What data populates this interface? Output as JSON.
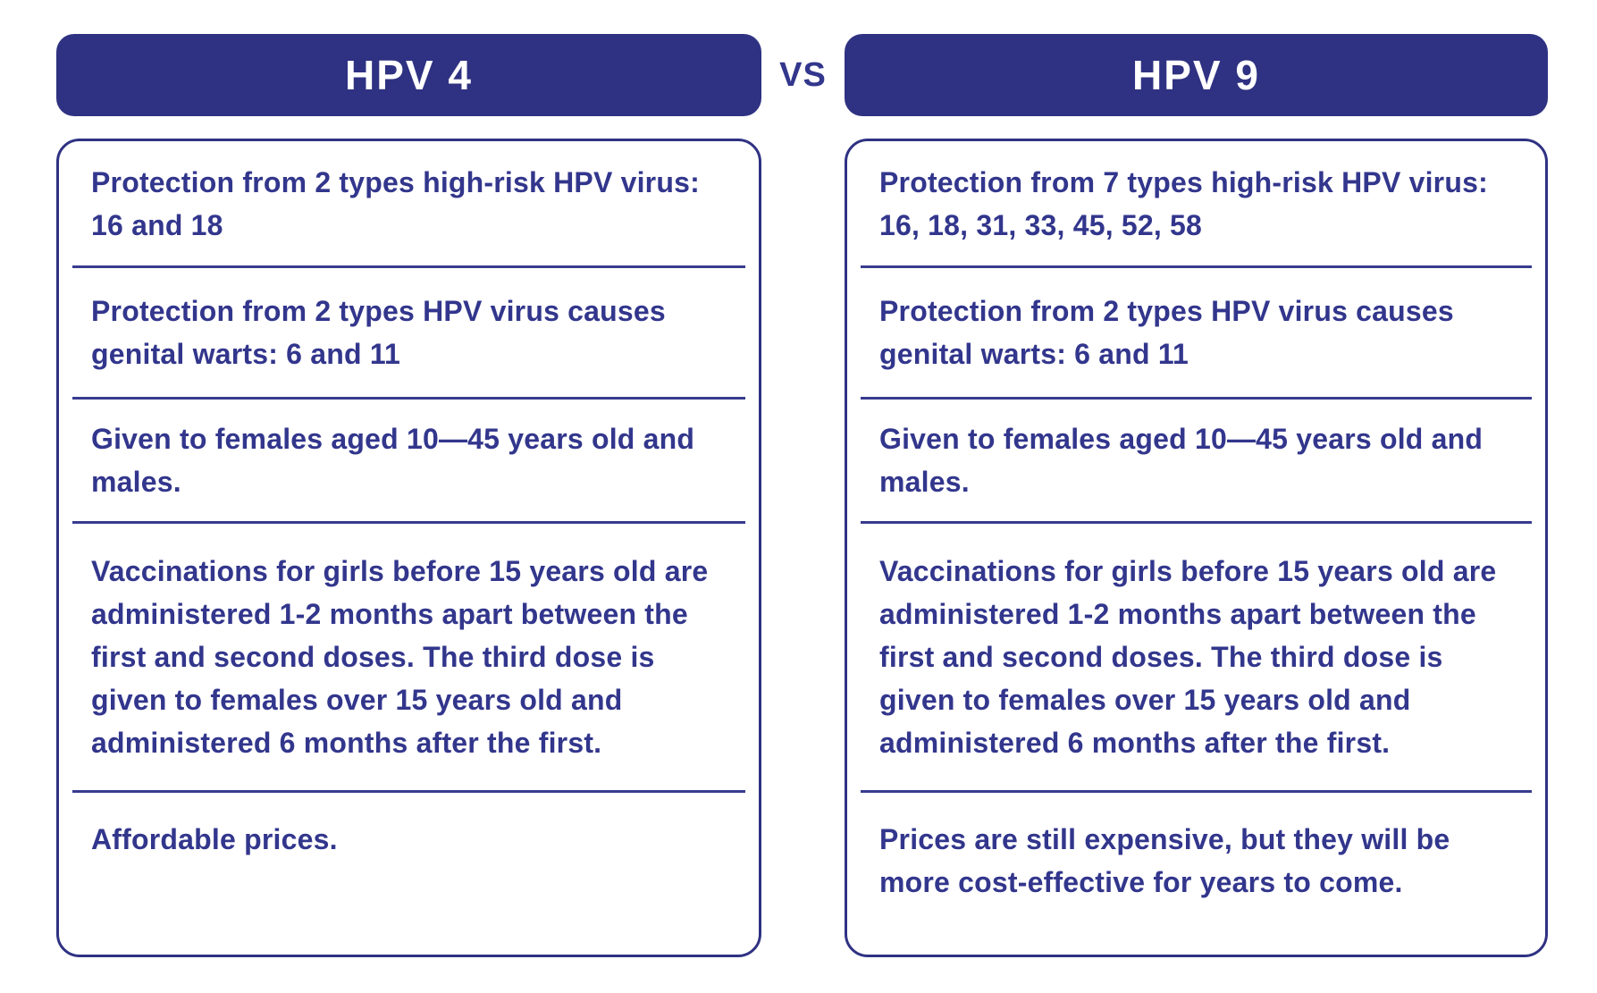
{
  "colors": {
    "primary": "#2f3282",
    "separator": "#383b8e",
    "text": "#32368c",
    "header_text": "#ffffff",
    "background": "#ffffff"
  },
  "vs_label": "VS",
  "columns": [
    {
      "title": "HPV 4",
      "rows": [
        "Protection from 2 types high-risk HPV virus: 16 and 18",
        "Protection from 2 types HPV virus causes genital warts: 6 and 11",
        "Given to females aged 10—45 years old and males.",
        "Vaccinations for girls before 15 years old are administered 1-2 months apart between the first and second doses. The third dose is given to females over 15 years old and administered 6 months after the first.",
        "Affordable prices."
      ]
    },
    {
      "title": "HPV 9",
      "rows": [
        "Protection from 7 types high-risk HPV virus: 16, 18, 31, 33, 45, 52, 58",
        "Protection from 2 types HPV virus causes genital warts: 6 and 11",
        "Given to females aged 10—45 years old and males.",
        "Vaccinations for girls before 15 years old are administered 1-2 months apart between the first and second doses. The third dose is given to females over 15 years old and administered 6 months after the first.",
        "Prices are still expensive, but they will be more cost-effective for years to come."
      ]
    }
  ]
}
